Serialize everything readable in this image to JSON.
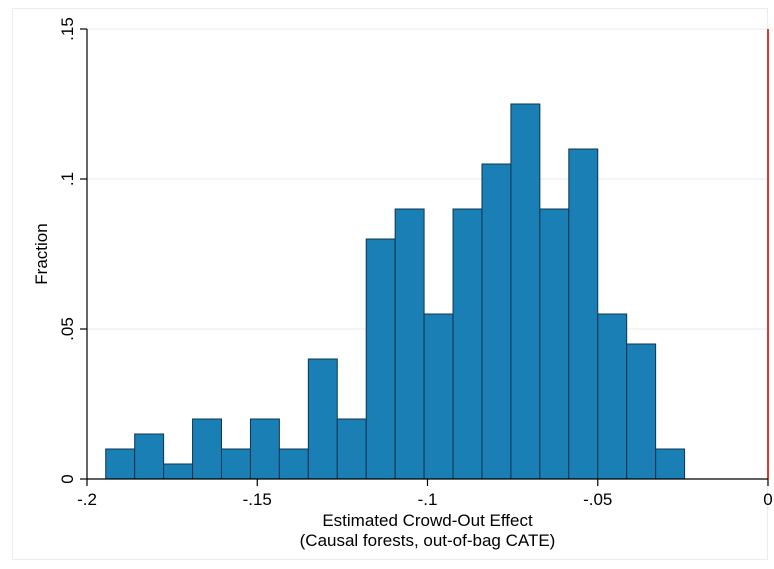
{
  "chart_data": {
    "type": "bar",
    "subtype": "histogram",
    "title": "",
    "xlabel": "Estimated Crowd-Out Effect",
    "xlabel_sub": "(Causal forests, out-of-bag CATE)",
    "ylabel": "Fraction",
    "xlim": [
      -0.2,
      0.0
    ],
    "ylim": [
      0,
      0.15
    ],
    "bin_width": 0.0085,
    "bins": [
      {
        "x0": -0.1945,
        "x1": -0.186,
        "value": 0.01
      },
      {
        "x0": -0.186,
        "x1": -0.1775,
        "value": 0.015
      },
      {
        "x0": -0.1775,
        "x1": -0.169,
        "value": 0.005
      },
      {
        "x0": -0.169,
        "x1": -0.1605,
        "value": 0.02
      },
      {
        "x0": -0.1605,
        "x1": -0.152,
        "value": 0.01
      },
      {
        "x0": -0.152,
        "x1": -0.1435,
        "value": 0.02
      },
      {
        "x0": -0.1435,
        "x1": -0.135,
        "value": 0.01
      },
      {
        "x0": -0.135,
        "x1": -0.1265,
        "value": 0.04
      },
      {
        "x0": -0.1265,
        "x1": -0.118,
        "value": 0.02
      },
      {
        "x0": -0.118,
        "x1": -0.1095,
        "value": 0.08
      },
      {
        "x0": -0.1095,
        "x1": -0.101,
        "value": 0.09
      },
      {
        "x0": -0.101,
        "x1": -0.0925,
        "value": 0.055
      },
      {
        "x0": -0.0925,
        "x1": -0.084,
        "value": 0.09
      },
      {
        "x0": -0.084,
        "x1": -0.0755,
        "value": 0.105
      },
      {
        "x0": -0.0755,
        "x1": -0.067,
        "value": 0.125
      },
      {
        "x0": -0.067,
        "x1": -0.0585,
        "value": 0.09
      },
      {
        "x0": -0.0585,
        "x1": -0.05,
        "value": 0.11
      },
      {
        "x0": -0.05,
        "x1": -0.0415,
        "value": 0.055
      },
      {
        "x0": -0.0415,
        "x1": -0.033,
        "value": 0.045
      },
      {
        "x0": -0.033,
        "x1": -0.0245,
        "value": 0.01
      }
    ],
    "x_ticks": [
      {
        "value": -0.2,
        "label": "-.2"
      },
      {
        "value": -0.15,
        "label": "-.15"
      },
      {
        "value": -0.1,
        "label": "-.1"
      },
      {
        "value": -0.05,
        "label": "-.05"
      },
      {
        "value": 0.0,
        "label": "0"
      }
    ],
    "y_ticks": [
      {
        "value": 0.0,
        "label": "0"
      },
      {
        "value": 0.05,
        "label": ".05"
      },
      {
        "value": 0.1,
        "label": ".1"
      },
      {
        "value": 0.15,
        "label": ".15"
      }
    ],
    "reference_line": {
      "x": 0.0,
      "color": "#e8362c"
    },
    "bar_color": "#1a7fb5",
    "bar_edge_color": "#0f3550",
    "grid": true,
    "legend": "none"
  }
}
